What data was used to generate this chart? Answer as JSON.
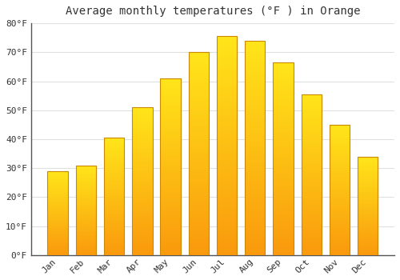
{
  "title": "Average monthly temperatures (°F ) in Orange",
  "months": [
    "Jan",
    "Feb",
    "Mar",
    "Apr",
    "May",
    "Jun",
    "Jul",
    "Aug",
    "Sep",
    "Oct",
    "Nov",
    "Dec"
  ],
  "values": [
    29,
    31,
    40.5,
    51,
    61,
    70,
    75.5,
    74,
    66.5,
    55.5,
    45,
    34
  ],
  "bar_color_top": "#FFA500",
  "bar_color_bottom": "#FFD700",
  "bar_edge_color": "#CC8800",
  "background_color": "#FFFFFF",
  "plot_bg_color": "#FFFFFF",
  "grid_color": "#E0E0E0",
  "text_color": "#333333",
  "axis_color": "#555555",
  "ylim": [
    0,
    80
  ],
  "yticks": [
    0,
    10,
    20,
    30,
    40,
    50,
    60,
    70,
    80
  ],
  "title_fontsize": 10,
  "tick_fontsize": 8,
  "font_family": "monospace",
  "bar_width": 0.72
}
